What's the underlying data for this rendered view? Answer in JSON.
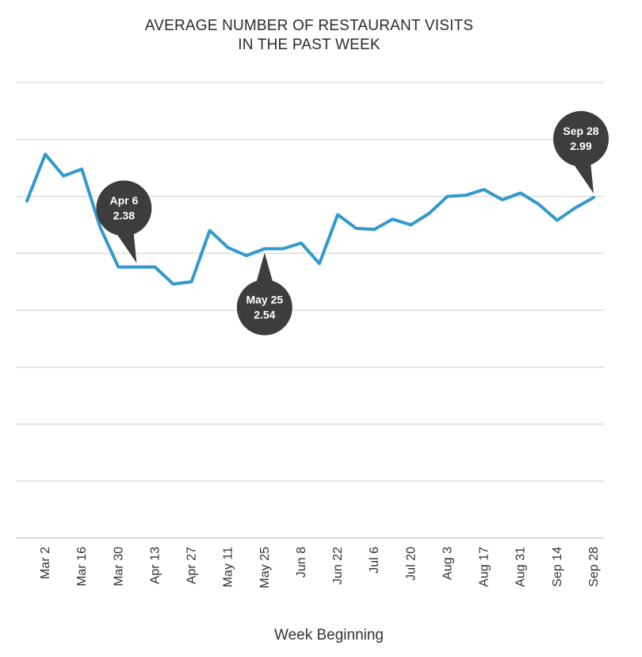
{
  "chart_data": {
    "type": "line",
    "title_lines": [
      "AVERAGE NUMBER OF RESTAURANT VISITS",
      "IN THE PAST WEEK"
    ],
    "xlabel": "Week Beginning",
    "ylabel": "",
    "ylim": [
      0,
      4
    ],
    "grid": true,
    "color": "#3399cc",
    "tick_labels": [
      "Mar 2",
      "Mar 16",
      "Mar 30",
      "Apr 13",
      "Apr 27",
      "May 11",
      "May 25",
      "Jun 8",
      "Jun 22",
      "Jul 6",
      "Jul 20",
      "Aug 3",
      "Aug 17",
      "Aug 31",
      "Sep 14",
      "Sep 28"
    ],
    "x": [
      "Feb 24",
      "Mar 2",
      "Mar 9",
      "Mar 16",
      "Mar 23",
      "Mar 30",
      "Apr 6",
      "Apr 13",
      "Apr 20",
      "Apr 27",
      "May 4",
      "May 11",
      "May 18",
      "May 25",
      "Jun 1",
      "Jun 8",
      "Jun 15",
      "Jun 22",
      "Jun 29",
      "Jul 6",
      "Jul 13",
      "Jul 20",
      "Jul 27",
      "Aug 3",
      "Aug 10",
      "Aug 17",
      "Aug 24",
      "Aug 31",
      "Sep 7",
      "Sep 14",
      "Sep 21",
      "Sep 28"
    ],
    "values": [
      2.96,
      3.37,
      3.18,
      3.24,
      2.73,
      2.38,
      2.38,
      2.38,
      2.23,
      2.25,
      2.7,
      2.55,
      2.48,
      2.54,
      2.54,
      2.59,
      2.41,
      2.84,
      2.72,
      2.71,
      2.8,
      2.75,
      2.85,
      3.0,
      3.01,
      3.06,
      2.97,
      3.03,
      2.93,
      2.79,
      2.9,
      2.99
    ],
    "callouts": [
      {
        "label": "Apr 6",
        "value": "2.38",
        "x": "Apr 6",
        "y": 2.38,
        "side": "above"
      },
      {
        "label": "May 25",
        "value": "2.54",
        "x": "May 25",
        "y": 2.54,
        "side": "below"
      },
      {
        "label": "Sep 28",
        "value": "2.99",
        "x": "Sep 28",
        "y": 2.99,
        "side": "above"
      }
    ]
  }
}
